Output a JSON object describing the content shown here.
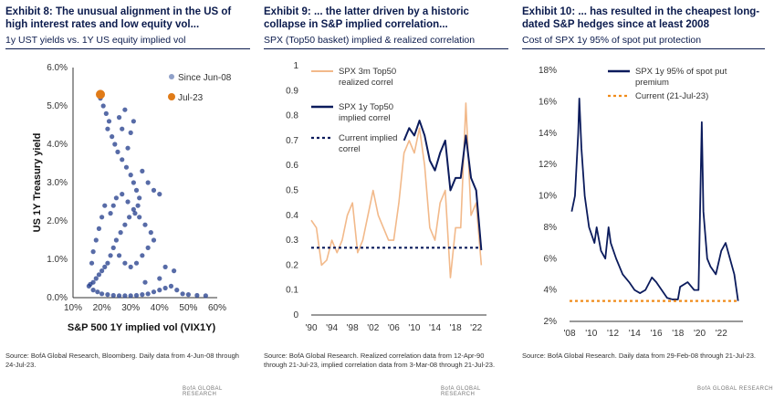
{
  "chart_data": [
    {
      "type": "scatter",
      "title": "Exhibit 8: The unusual alignment in the US of high interest rates and low equity vol...",
      "subtitle": "1y UST yields vs. 1Y US equity implied vol",
      "xlabel": "S&P 500 1Y implied vol (VIX1Y)",
      "ylabel": "US 1Y Treasury yield",
      "xlim": [
        0.1,
        0.6
      ],
      "ylim": [
        0.0,
        0.06
      ],
      "x_ticks": [
        "10%",
        "20%",
        "30%",
        "40%",
        "50%",
        "60%"
      ],
      "y_ticks": [
        "0.0%",
        "1.0%",
        "2.0%",
        "3.0%",
        "4.0%",
        "5.0%",
        "6.0%"
      ],
      "legend": "top-right",
      "series": [
        {
          "name": "Since Jun-08",
          "color": "#1f3a8a",
          "points": [
            [
              0.195,
              0.052
            ],
            [
              0.205,
              0.05
            ],
            [
              0.215,
              0.048
            ],
            [
              0.225,
              0.046
            ],
            [
              0.22,
              0.044
            ],
            [
              0.235,
              0.042
            ],
            [
              0.245,
              0.04
            ],
            [
              0.255,
              0.038
            ],
            [
              0.27,
              0.036
            ],
            [
              0.285,
              0.034
            ],
            [
              0.3,
              0.032
            ],
            [
              0.31,
              0.03
            ],
            [
              0.32,
              0.028
            ],
            [
              0.33,
              0.026
            ],
            [
              0.325,
              0.024
            ],
            [
              0.315,
              0.022
            ],
            [
              0.295,
              0.021
            ],
            [
              0.28,
              0.019
            ],
            [
              0.265,
              0.017
            ],
            [
              0.25,
              0.015
            ],
            [
              0.24,
              0.013
            ],
            [
              0.23,
              0.011
            ],
            [
              0.22,
              0.009
            ],
            [
              0.21,
              0.008
            ],
            [
              0.2,
              0.007
            ],
            [
              0.19,
              0.006
            ],
            [
              0.18,
              0.005
            ],
            [
              0.17,
              0.004
            ],
            [
              0.16,
              0.0035
            ],
            [
              0.155,
              0.003
            ],
            [
              0.17,
              0.002
            ],
            [
              0.185,
              0.0015
            ],
            [
              0.2,
              0.001
            ],
            [
              0.22,
              0.0008
            ],
            [
              0.24,
              0.0006
            ],
            [
              0.26,
              0.0005
            ],
            [
              0.28,
              0.0005
            ],
            [
              0.3,
              0.0005
            ],
            [
              0.32,
              0.0006
            ],
            [
              0.34,
              0.0008
            ],
            [
              0.36,
              0.001
            ],
            [
              0.38,
              0.0015
            ],
            [
              0.4,
              0.002
            ],
            [
              0.42,
              0.0025
            ],
            [
              0.44,
              0.003
            ],
            [
              0.46,
              0.002
            ],
            [
              0.48,
              0.001
            ],
            [
              0.5,
              0.0008
            ],
            [
              0.53,
              0.0006
            ],
            [
              0.56,
              0.0005
            ],
            [
              0.23,
              0.022
            ],
            [
              0.24,
              0.024
            ],
            [
              0.25,
              0.026
            ],
            [
              0.27,
              0.027
            ],
            [
              0.29,
              0.025
            ],
            [
              0.31,
              0.023
            ],
            [
              0.33,
              0.021
            ],
            [
              0.35,
              0.019
            ],
            [
              0.37,
              0.017
            ],
            [
              0.38,
              0.015
            ],
            [
              0.36,
              0.013
            ],
            [
              0.34,
              0.011
            ],
            [
              0.32,
              0.009
            ],
            [
              0.3,
              0.008
            ],
            [
              0.28,
              0.009
            ],
            [
              0.26,
              0.011
            ],
            [
              0.36,
              0.03
            ],
            [
              0.38,
              0.028
            ],
            [
              0.4,
              0.027
            ],
            [
              0.34,
              0.033
            ],
            [
              0.29,
              0.039
            ],
            [
              0.3,
              0.043
            ],
            [
              0.31,
              0.046
            ],
            [
              0.27,
              0.044
            ],
            [
              0.26,
              0.047
            ],
            [
              0.28,
              0.049
            ],
            [
              0.21,
              0.024
            ],
            [
              0.2,
              0.021
            ],
            [
              0.19,
              0.018
            ],
            [
              0.18,
              0.015
            ],
            [
              0.17,
              0.012
            ],
            [
              0.165,
              0.009
            ],
            [
              0.42,
              0.008
            ],
            [
              0.45,
              0.007
            ],
            [
              0.4,
              0.005
            ],
            [
              0.35,
              0.004
            ]
          ]
        },
        {
          "name": "Jul-23",
          "color": "#e07b18",
          "points": [
            [
              0.195,
              0.053
            ]
          ]
        }
      ],
      "source": "Source: BofA Global Research, Bloomberg. Daily data from 4-Jun-08 through 24-Jul-23.",
      "brand": "BofA GLOBAL RESEARCH"
    },
    {
      "type": "line",
      "title": "Exhibit 9: ... the latter driven by a historic collapse in S&P implied correlation...",
      "subtitle": "SPX (Top50 basket) implied & realized correlation",
      "xlim": [
        1990,
        2024
      ],
      "ylim": [
        0.0,
        1.0
      ],
      "x_ticks": [
        "'90",
        "'94",
        "'98",
        "'02",
        "'06",
        "'10",
        "'14",
        "'18",
        "'22"
      ],
      "y_ticks": [
        "0",
        "0.1",
        "0.2",
        "0.3",
        "0.4",
        "0.5",
        "0.6",
        "0.7",
        "0.8",
        "0.9",
        "1"
      ],
      "legend": "top-left",
      "series": [
        {
          "name": "SPX 3m Top50 realized correl",
          "color": "#f2b98a",
          "x": [
            1990,
            1991,
            1992,
            1993,
            1994,
            1995,
            1996,
            1997,
            1998,
            1999,
            2000,
            2001,
            2002,
            2003,
            2004,
            2005,
            2006,
            2007,
            2008,
            2009,
            2010,
            2011,
            2012,
            2013,
            2014,
            2015,
            2016,
            2017,
            2018,
            2019,
            2020,
            2021,
            2022,
            2023
          ],
          "y": [
            0.38,
            0.35,
            0.2,
            0.22,
            0.3,
            0.25,
            0.3,
            0.4,
            0.45,
            0.25,
            0.3,
            0.4,
            0.5,
            0.4,
            0.35,
            0.3,
            0.3,
            0.45,
            0.65,
            0.7,
            0.65,
            0.75,
            0.6,
            0.35,
            0.3,
            0.45,
            0.5,
            0.15,
            0.35,
            0.35,
            0.85,
            0.4,
            0.45,
            0.2
          ]
        },
        {
          "name": "SPX 1y Top50 implied correl",
          "color": "#0b1b5c",
          "x": [
            2008,
            2009,
            2010,
            2011,
            2012,
            2013,
            2014,
            2015,
            2016,
            2017,
            2018,
            2019,
            2020,
            2021,
            2022,
            2023
          ],
          "y": [
            0.7,
            0.75,
            0.72,
            0.78,
            0.72,
            0.62,
            0.58,
            0.65,
            0.7,
            0.5,
            0.55,
            0.55,
            0.72,
            0.55,
            0.5,
            0.26
          ]
        },
        {
          "name": "Current implied correl",
          "color": "#0b1b5c",
          "dashed": true,
          "x": [
            1990,
            2023
          ],
          "y": [
            0.27,
            0.27
          ]
        }
      ],
      "source": "Source: BofA Global Research. Realized correlation data from 12-Apr-90 through 21-Jul-23, implied correlation data from 3-Mar-08 through 21-Jul-23.",
      "brand": "BofA GLOBAL RESEARCH"
    },
    {
      "type": "line",
      "title": "Exhibit 10: ... has resulted in the cheapest long-dated S&P hedges since at least 2008",
      "subtitle": "Cost of SPX 1y 95% of spot put protection",
      "xlim": [
        2008,
        2024
      ],
      "ylim": [
        0.02,
        0.18
      ],
      "x_ticks": [
        "'08",
        "'10",
        "'12",
        "'14",
        "'16",
        "'18",
        "'20",
        "'22"
      ],
      "y_ticks": [
        "2%",
        "4%",
        "6%",
        "8%",
        "10%",
        "12%",
        "14%",
        "16%",
        "18%"
      ],
      "legend": "top-right",
      "series": [
        {
          "name": "SPX 1y 95% of spot put premium",
          "color": "#0b1b5c",
          "x": [
            2008.2,
            2008.5,
            2008.8,
            2008.9,
            2009.1,
            2009.4,
            2009.8,
            2010.3,
            2010.5,
            2010.9,
            2011.3,
            2011.6,
            2011.8,
            2012.3,
            2012.9,
            2013.5,
            2014.0,
            2014.5,
            2015.0,
            2015.6,
            2016.0,
            2016.5,
            2017.0,
            2017.5,
            2018.0,
            2018.2,
            2018.9,
            2019.5,
            2019.9,
            2020.2,
            2020.35,
            2020.7,
            2021.0,
            2021.5,
            2022.0,
            2022.4,
            2022.8,
            2023.2,
            2023.55
          ],
          "y": [
            0.09,
            0.1,
            0.14,
            0.162,
            0.13,
            0.1,
            0.08,
            0.07,
            0.08,
            0.065,
            0.06,
            0.08,
            0.07,
            0.06,
            0.05,
            0.045,
            0.04,
            0.038,
            0.04,
            0.048,
            0.045,
            0.04,
            0.035,
            0.034,
            0.034,
            0.042,
            0.045,
            0.04,
            0.04,
            0.147,
            0.09,
            0.06,
            0.055,
            0.05,
            0.065,
            0.07,
            0.06,
            0.05,
            0.033
          ]
        },
        {
          "name": "Current (21-Jul-23)",
          "color": "#f08c1a",
          "dashed": true,
          "x": [
            2008,
            2023.6
          ],
          "y": [
            0.033,
            0.033
          ]
        }
      ],
      "source": "Source: BofA Global Research. Daily data from 29-Feb-08 through 21-Jul-23.",
      "brand": "BofA GLOBAL RESEARCH"
    }
  ]
}
